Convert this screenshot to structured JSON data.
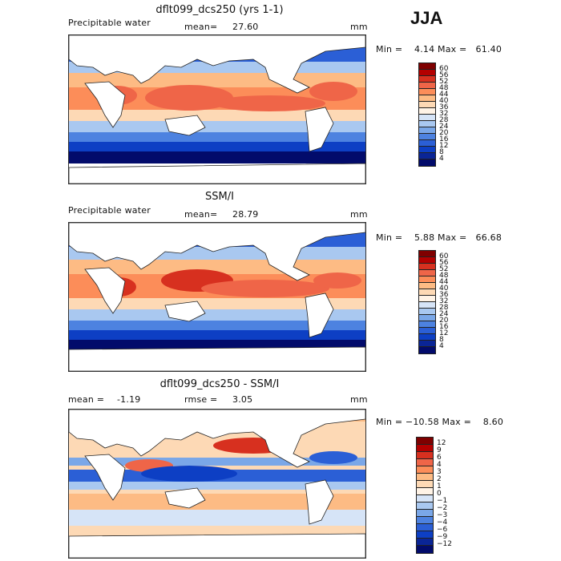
{
  "season": "JJA",
  "panels": [
    {
      "title": "dflt099_dcs250 (yrs 1-1)",
      "field_label": "Precipitable water",
      "stat_label": "mean=",
      "stat_value": "27.60",
      "units": "mm",
      "minmax": "Min =    4.14 Max =   61.40",
      "colorbar": {
        "labels": [
          "60",
          "56",
          "52",
          "48",
          "44",
          "40",
          "36",
          "32",
          "28",
          "24",
          "20",
          "16",
          "12",
          "8",
          "4"
        ],
        "colors": [
          "#7f0000",
          "#b30000",
          "#d7301f",
          "#ef6548",
          "#fc8d59",
          "#fdbb84",
          "#fdd9b5",
          "#fff3e6",
          "#d6e4f7",
          "#a9c8f0",
          "#7aa7e8",
          "#4d82e0",
          "#2b5fd6",
          "#0d3fc4",
          "#0a2596",
          "#020b6b"
        ]
      },
      "legend": "shared"
    },
    {
      "title": "SSM/I",
      "field_label": "Precipitable water",
      "stat_label": "mean=",
      "stat_value": "28.79",
      "units": "mm",
      "minmax": "Min =    5.88 Max =   66.68",
      "colorbar": {
        "labels": [
          "60",
          "56",
          "52",
          "48",
          "44",
          "40",
          "36",
          "32",
          "28",
          "24",
          "20",
          "16",
          "12",
          "8",
          "4"
        ],
        "colors": [
          "#7f0000",
          "#b30000",
          "#d7301f",
          "#ef6548",
          "#fc8d59",
          "#fdbb84",
          "#fdd9b5",
          "#fff3e6",
          "#d6e4f7",
          "#a9c8f0",
          "#7aa7e8",
          "#4d82e0",
          "#2b5fd6",
          "#0d3fc4",
          "#0a2596",
          "#020b6b"
        ]
      }
    },
    {
      "title": "dflt099_dcs250 - SSM/I",
      "field_label": "mean =",
      "stat_label": "rmse =",
      "stat_value": "3.05",
      "mean_value": "-1.19",
      "units": "mm",
      "minmax": "Min = −10.58 Max =    8.60",
      "colorbar": {
        "labels": [
          "12",
          "9",
          "6",
          "4",
          "3",
          "2",
          "1",
          "0",
          "−1",
          "−2",
          "−3",
          "−4",
          "−6",
          "−9",
          "−12"
        ],
        "colors": [
          "#7f0000",
          "#b30000",
          "#d7301f",
          "#ef6548",
          "#fc8d59",
          "#fdbb84",
          "#fdd9b5",
          "#fff3e6",
          "#d6e4f7",
          "#a9c8f0",
          "#7aa7e8",
          "#4d82e0",
          "#2b5fd6",
          "#0d3fc4",
          "#0a2596",
          "#020b6b"
        ]
      }
    }
  ]
}
